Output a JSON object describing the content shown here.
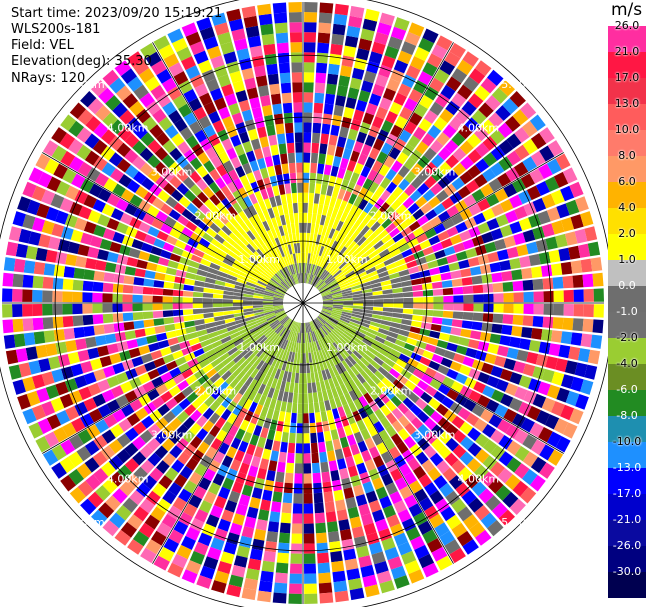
{
  "info": {
    "start_time": "Start time: 2023/09/20 15:19:21",
    "instrument": "WLS200s-181",
    "field": "Field: VEL",
    "elevation": "Elevation(deg): 35.30",
    "nrays": "NRays: 120"
  },
  "legend": {
    "unit": "m/s",
    "entries": [
      {
        "label": "26.0",
        "color": "#ff2ea0"
      },
      {
        "label": "21.0",
        "color": "#ff1744"
      },
      {
        "label": "17.0",
        "color": "#f2324a"
      },
      {
        "label": "13.0",
        "color": "#ff5c5c"
      },
      {
        "label": "10.0",
        "color": "#ff7b6b"
      },
      {
        "label": "8.0",
        "color": "#ff9966"
      },
      {
        "label": "6.0",
        "color": "#ffb300"
      },
      {
        "label": "4.0",
        "color": "#ffe000"
      },
      {
        "label": "2.0",
        "color": "#ffff00"
      },
      {
        "label": "1.0",
        "color": "#c0c0c0"
      },
      {
        "label": "0.0",
        "color": "#6e6e6e"
      },
      {
        "label": "-1.0",
        "color": "#707070"
      },
      {
        "label": "-2.0",
        "color": "#9acd32"
      },
      {
        "label": "-4.0",
        "color": "#6b8e23"
      },
      {
        "label": "-6.0",
        "color": "#228b22"
      },
      {
        "label": "-8.0",
        "color": "#1e8fb0"
      },
      {
        "label": "-10.0",
        "color": "#1e90ff"
      },
      {
        "label": "-13.0",
        "color": "#0000ff"
      },
      {
        "label": "-17.0",
        "color": "#0000cd"
      },
      {
        "label": "-21.0",
        "color": "#0a0aa0"
      },
      {
        "label": "-26.0",
        "color": "#000080"
      },
      {
        "label": "-30.0",
        "color": "#000050"
      }
    ]
  },
  "range_labels": [
    "1.00km",
    "2.00km",
    "3.00km",
    "4.00km",
    "5.00km"
  ],
  "palette": [
    "#ff2ea0",
    "#ff1744",
    "#ff5c5c",
    "#ff9966",
    "#ffb300",
    "#ffff00",
    "#6e6e6e",
    "#9acd32",
    "#228b22",
    "#1e90ff",
    "#0000ff",
    "#0000cd",
    "#000080",
    "#ff69b4",
    "#ff00ff",
    "#8b0000"
  ]
}
